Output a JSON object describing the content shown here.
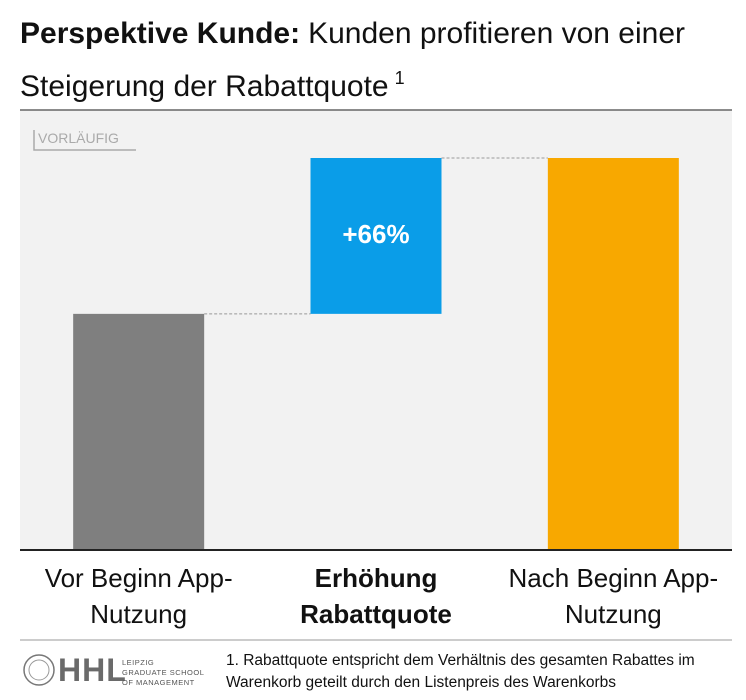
{
  "chart_data": {
    "type": "waterfall",
    "title_lead": "Perspektive Kunde:",
    "title": "Kunden profitieren von einer Steigerung der Rabattquote",
    "title_note_ref": "1",
    "stamp": "VORLÄUFIG",
    "categories": [
      "Vor Beginn App-Nutzung",
      "Erhöhung Rabattquote",
      "Nach Beginn App-Nutzung"
    ],
    "values": [
      100,
      66,
      166
    ],
    "value_labels": [
      null,
      "+66%",
      null
    ],
    "measure": [
      "absolute",
      "relative",
      "total"
    ],
    "colors": [
      "#7f7f7f",
      "#0a9de8",
      "#f8a800"
    ],
    "footnote": "1. Rabattquote entspricht dem Verhältnis des gesamten Rabattes im Warenkorb geteilt durch den Listenpreis des Warenkorbs",
    "logo": {
      "name": "HHL",
      "line1": "LEIPZIG",
      "line2": "GRADUATE SCHOOL",
      "line3": "OF MANAGEMENT"
    }
  }
}
